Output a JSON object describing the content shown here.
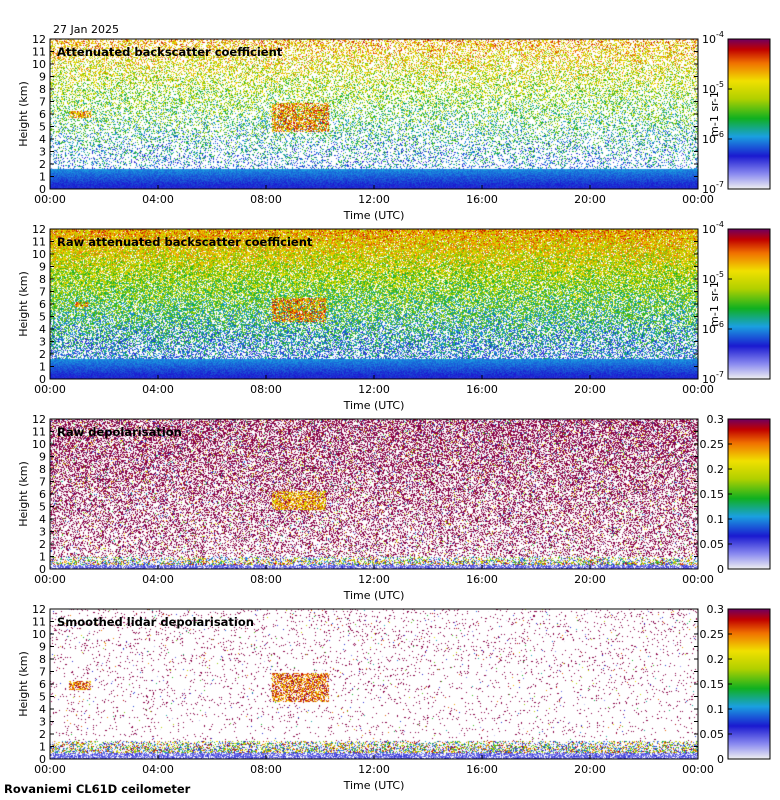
{
  "date": "27 Jan 2025",
  "footer": {
    "site_label": "Rovaniemi CL61D ceilometer"
  },
  "chart_data": [
    {
      "type": "heatmap",
      "title": "Attenuated backscatter coefficient",
      "xlabel": "Time (UTC)",
      "ylabel": "Height (km)",
      "xticks": [
        "00:00",
        "04:00",
        "08:00",
        "12:00",
        "16:00",
        "20:00",
        "00:00"
      ],
      "yticks": [
        "0",
        "1",
        "2",
        "3",
        "4",
        "5",
        "6",
        "7",
        "8",
        "9",
        "10",
        "11",
        "12"
      ],
      "xlim_hours": [
        0,
        24
      ],
      "ylim_km": [
        0,
        12
      ],
      "colorbar": {
        "scale": "log",
        "range": [
          1e-07,
          0.0001
        ],
        "units_label": "m-1 sr-1",
        "ticks": [
          {
            "mantissa": "10",
            "exp": "-4"
          },
          {
            "mantissa": "10",
            "exp": "-5"
          },
          {
            "mantissa": "10",
            "exp": "-6"
          },
          {
            "mantissa": "10",
            "exp": "-7"
          }
        ]
      },
      "features": {
        "noise_top_km": 12,
        "noise_fraction": 0.45,
        "near_surface_layer_top_km": 1.6,
        "clouds": [
          {
            "t_hours": [
              0.7,
              1.5
            ],
            "z_km": [
              5.7,
              6.3
            ],
            "log_value": -4.2
          },
          {
            "t_hours": [
              8.2,
              10.3
            ],
            "z_km": [
              4.6,
              6.9
            ],
            "log_value": -4.1
          }
        ]
      }
    },
    {
      "type": "heatmap",
      "title": "Raw attenuated backscatter coefficient",
      "xlabel": "Time (UTC)",
      "ylabel": "Height (km)",
      "xticks": [
        "00:00",
        "04:00",
        "08:00",
        "12:00",
        "16:00",
        "20:00",
        "00:00"
      ],
      "yticks": [
        "0",
        "1",
        "2",
        "3",
        "4",
        "5",
        "6",
        "7",
        "8",
        "9",
        "10",
        "11",
        "12"
      ],
      "xlim_hours": [
        0,
        24
      ],
      "ylim_km": [
        0,
        12
      ],
      "colorbar": {
        "scale": "log",
        "range": [
          1e-07,
          0.0001
        ],
        "units_label": "m-1 sr-1",
        "ticks": [
          {
            "mantissa": "10",
            "exp": "-4"
          },
          {
            "mantissa": "10",
            "exp": "-5"
          },
          {
            "mantissa": "10",
            "exp": "-6"
          },
          {
            "mantissa": "10",
            "exp": "-7"
          }
        ]
      },
      "features": {
        "noise_top_km": 12,
        "noise_fraction": 0.95,
        "near_surface_layer_top_km": 1.6,
        "clouds": [
          {
            "t_hours": [
              0.9,
              1.4
            ],
            "z_km": [
              5.8,
              6.2
            ],
            "log_value": -4.2
          },
          {
            "t_hours": [
              8.2,
              10.2
            ],
            "z_km": [
              4.6,
              6.5
            ],
            "log_value": -4.1
          }
        ]
      }
    },
    {
      "type": "heatmap",
      "title": "Raw depolarisation",
      "xlabel": "Time (UTC)",
      "ylabel": "Height (km)",
      "xticks": [
        "00:00",
        "04:00",
        "08:00",
        "12:00",
        "16:00",
        "20:00",
        "00:00"
      ],
      "yticks": [
        "0",
        "1",
        "2",
        "3",
        "4",
        "5",
        "6",
        "7",
        "8",
        "9",
        "10",
        "11",
        "12"
      ],
      "xlim_hours": [
        0,
        24
      ],
      "ylim_km": [
        0,
        12
      ],
      "colorbar": {
        "scale": "linear",
        "range": [
          0,
          0.3
        ],
        "units_label": "",
        "ticks": [
          {
            "mantissa": "0.3",
            "exp": ""
          },
          {
            "mantissa": "0.25",
            "exp": ""
          },
          {
            "mantissa": "0.2",
            "exp": ""
          },
          {
            "mantissa": "0.15",
            "exp": ""
          },
          {
            "mantissa": "0.1",
            "exp": ""
          },
          {
            "mantissa": "0.05",
            "exp": ""
          },
          {
            "mantissa": "0",
            "exp": ""
          }
        ]
      },
      "features": {
        "noise_top_km": 12,
        "noise_fraction": 0.55,
        "near_surface_layer_top_km": 1.0,
        "clouds": [
          {
            "t_hours": [
              8.2,
              10.2
            ],
            "z_km": [
              4.8,
              6.3
            ],
            "value": 0.27
          }
        ]
      }
    },
    {
      "type": "heatmap",
      "title": "Smoothed lidar depolarisation",
      "xlabel": "Time (UTC)",
      "ylabel": "Height (km)",
      "xticks": [
        "00:00",
        "04:00",
        "08:00",
        "12:00",
        "16:00",
        "20:00",
        "00:00"
      ],
      "yticks": [
        "0",
        "1",
        "2",
        "3",
        "4",
        "5",
        "6",
        "7",
        "8",
        "9",
        "10",
        "11",
        "12"
      ],
      "xlim_hours": [
        0,
        24
      ],
      "ylim_km": [
        0,
        12
      ],
      "colorbar": {
        "scale": "linear",
        "range": [
          0,
          0.3
        ],
        "units_label": "",
        "ticks": [
          {
            "mantissa": "0.3",
            "exp": ""
          },
          {
            "mantissa": "0.25",
            "exp": ""
          },
          {
            "mantissa": "0.2",
            "exp": ""
          },
          {
            "mantissa": "0.15",
            "exp": ""
          },
          {
            "mantissa": "0.1",
            "exp": ""
          },
          {
            "mantissa": "0.05",
            "exp": ""
          },
          {
            "mantissa": "0",
            "exp": ""
          }
        ]
      },
      "features": {
        "noise_top_km": 12,
        "noise_fraction": 0.06,
        "near_surface_layer_top_km": 1.5,
        "clouds": [
          {
            "t_hours": [
              0.7,
              1.5
            ],
            "z_km": [
              5.6,
              6.3
            ],
            "value": 0.3
          },
          {
            "t_hours": [
              8.2,
              10.3
            ],
            "z_km": [
              4.6,
              6.9
            ],
            "value": 0.3
          }
        ]
      }
    }
  ]
}
